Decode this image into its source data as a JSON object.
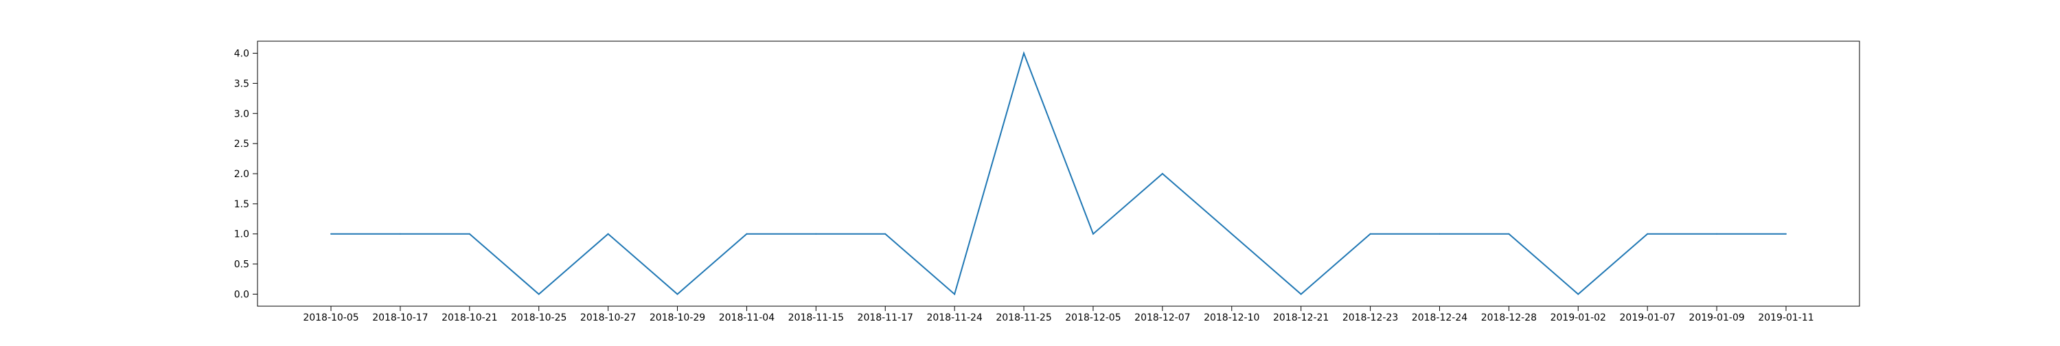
{
  "chart_data": {
    "type": "line",
    "categories": [
      "2018-10-05",
      "2018-10-17",
      "2018-10-21",
      "2018-10-25",
      "2018-10-27",
      "2018-10-29",
      "2018-11-04",
      "2018-11-15",
      "2018-11-17",
      "2018-11-24",
      "2018-11-25",
      "2018-12-05",
      "2018-12-07",
      "2018-12-10",
      "2018-12-21",
      "2018-12-23",
      "2018-12-24",
      "2018-12-28",
      "2019-01-02",
      "2019-01-07",
      "2019-01-09",
      "2019-01-11"
    ],
    "series": [
      {
        "values": [
          1,
          1,
          1,
          0,
          1,
          0,
          1,
          1,
          1,
          0,
          4,
          1,
          2,
          1,
          0,
          1,
          1,
          1,
          0,
          1,
          1,
          1
        ],
        "color": "#1f77b4"
      }
    ],
    "yticks": [
      "0.0",
      "0.5",
      "1.0",
      "1.5",
      "2.0",
      "2.5",
      "3.0",
      "3.5",
      "4.0"
    ],
    "ylim": [
      -0.2,
      4.2
    ],
    "grid": false,
    "legend": "none"
  }
}
